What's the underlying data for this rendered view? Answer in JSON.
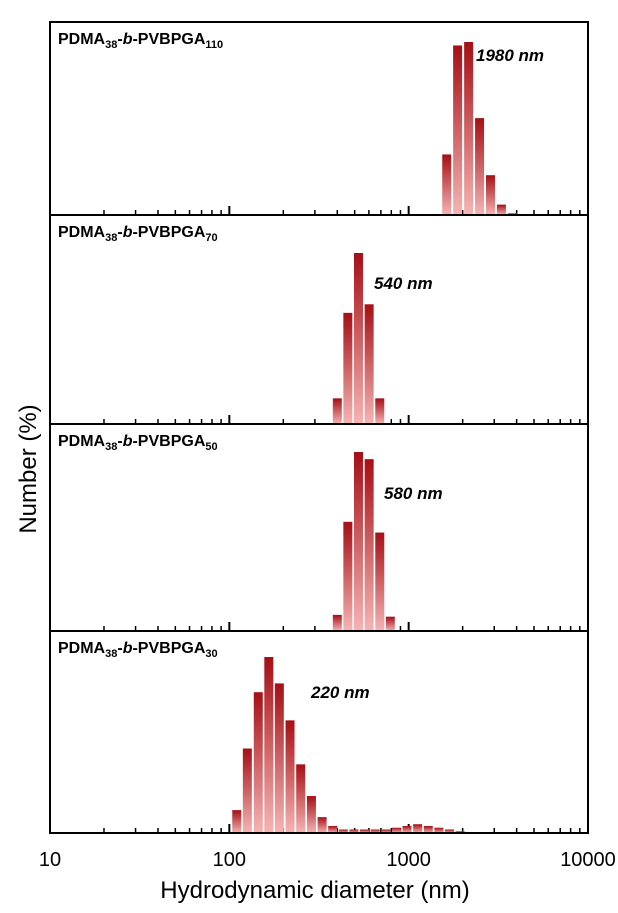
{
  "chart_data": {
    "type": "bar",
    "xlabel": "Hydrodynamic diameter (nm)",
    "ylabel": "Number (%)",
    "xscale": "log",
    "xlim": [
      10,
      10000
    ],
    "x_tick_labels": [
      "10",
      "100",
      "1000",
      "10000"
    ],
    "grid": false,
    "legend": "none",
    "colors": {
      "bar_dark": "#a50f15",
      "bar_light": "#f6b4b4",
      "frame": "#000000"
    },
    "panels": [
      {
        "label": {
          "prefix": "PDMA",
          "sub1": "38",
          "dash": "-",
          "italic": "b",
          "mid": "-PVBPGA",
          "sub2": "110"
        },
        "peak_label": "1980 nm",
        "bars": [
          {
            "x": 1630,
            "y": 35
          },
          {
            "x": 1875,
            "y": 98
          },
          {
            "x": 2160,
            "y": 100
          },
          {
            "x": 2485,
            "y": 56
          },
          {
            "x": 2860,
            "y": 23
          },
          {
            "x": 3290,
            "y": 6
          },
          {
            "x": 3790,
            "y": 1
          }
        ]
      },
      {
        "label": {
          "prefix": "PDMA",
          "sub1": "38",
          "dash": "-",
          "italic": "b",
          "mid": "-PVBPGA",
          "sub2": "70"
        },
        "peak_label": "540 nm",
        "bars": [
          {
            "x": 400,
            "y": 15
          },
          {
            "x": 458,
            "y": 65
          },
          {
            "x": 525,
            "y": 100
          },
          {
            "x": 602,
            "y": 70
          },
          {
            "x": 690,
            "y": 15
          }
        ]
      },
      {
        "label": {
          "prefix": "PDMA",
          "sub1": "38",
          "dash": "-",
          "italic": "b",
          "mid": "-PVBPGA",
          "sub2": "50"
        },
        "peak_label": "580 nm",
        "bars": [
          {
            "x": 400,
            "y": 9
          },
          {
            "x": 458,
            "y": 61
          },
          {
            "x": 525,
            "y": 100
          },
          {
            "x": 602,
            "y": 96
          },
          {
            "x": 690,
            "y": 55
          },
          {
            "x": 790,
            "y": 8
          }
        ]
      },
      {
        "label": {
          "prefix": "PDMA",
          "sub1": "38",
          "dash": "-",
          "italic": "b",
          "mid": "-PVBPGA",
          "sub2": "30"
        },
        "peak_label": "220 nm",
        "bars": [
          {
            "x": 110,
            "y": 13
          },
          {
            "x": 126,
            "y": 48
          },
          {
            "x": 145,
            "y": 80
          },
          {
            "x": 166,
            "y": 100
          },
          {
            "x": 190,
            "y": 85
          },
          {
            "x": 218,
            "y": 64
          },
          {
            "x": 250,
            "y": 39
          },
          {
            "x": 287,
            "y": 21
          },
          {
            "x": 329,
            "y": 9
          },
          {
            "x": 377,
            "y": 4
          },
          {
            "x": 432,
            "y": 2
          },
          {
            "x": 495,
            "y": 2
          },
          {
            "x": 567,
            "y": 2
          },
          {
            "x": 650,
            "y": 2
          },
          {
            "x": 745,
            "y": 2
          },
          {
            "x": 854,
            "y": 3
          },
          {
            "x": 979,
            "y": 4
          },
          {
            "x": 1122,
            "y": 5
          },
          {
            "x": 1286,
            "y": 4
          },
          {
            "x": 1474,
            "y": 3
          },
          {
            "x": 1690,
            "y": 2
          },
          {
            "x": 1937,
            "y": 1
          }
        ]
      }
    ]
  }
}
